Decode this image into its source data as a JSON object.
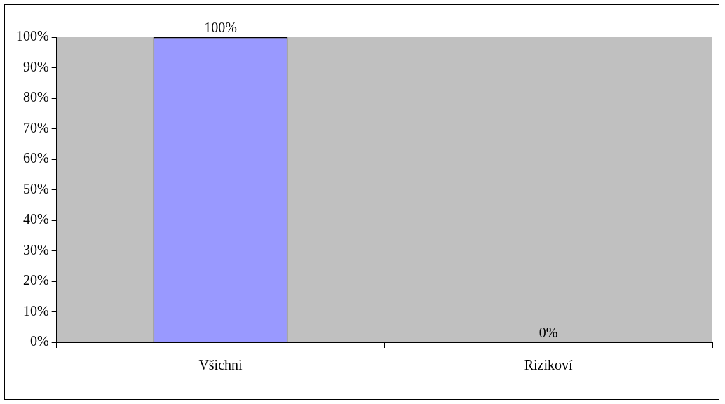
{
  "chart_data": {
    "type": "bar",
    "categories": [
      "Všichni",
      "Rizikoví"
    ],
    "values": [
      100,
      0
    ],
    "color": "#9999ff",
    "value_labels": [
      "100%",
      "0%"
    ],
    "ylim": [
      0,
      100
    ],
    "yticks": [
      {
        "value": 0,
        "label": "0%"
      },
      {
        "value": 10,
        "label": "10%"
      },
      {
        "value": 20,
        "label": "20%"
      },
      {
        "value": 30,
        "label": "30%"
      },
      {
        "value": 40,
        "label": "40%"
      },
      {
        "value": 50,
        "label": "50%"
      },
      {
        "value": 60,
        "label": "60%"
      },
      {
        "value": 70,
        "label": "70%"
      },
      {
        "value": 80,
        "label": "80%"
      },
      {
        "value": 90,
        "label": "90%"
      },
      {
        "value": 100,
        "label": "100%"
      }
    ],
    "grid": false,
    "legend": false
  }
}
